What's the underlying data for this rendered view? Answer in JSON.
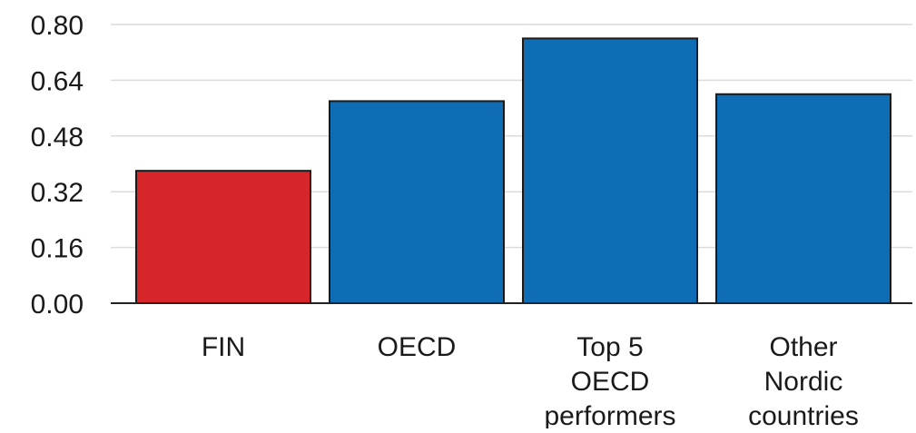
{
  "chart_data": {
    "type": "bar",
    "categories": [
      [
        "FIN"
      ],
      [
        "OECD"
      ],
      [
        "Top 5",
        "OECD",
        "performers"
      ],
      [
        "Other",
        "Nordic",
        "countries"
      ]
    ],
    "values": [
      0.38,
      0.58,
      0.76,
      0.6
    ],
    "colors": [
      "#d7262a",
      "#0f6db6",
      "#0f6db6",
      "#0f6db6"
    ],
    "yticks": [
      "0.00",
      "0.16",
      "0.32",
      "0.48",
      "0.64",
      "0.80"
    ],
    "ylim": [
      0,
      0.8
    ],
    "grid": true,
    "title": "",
    "xlabel": "",
    "ylabel": ""
  }
}
